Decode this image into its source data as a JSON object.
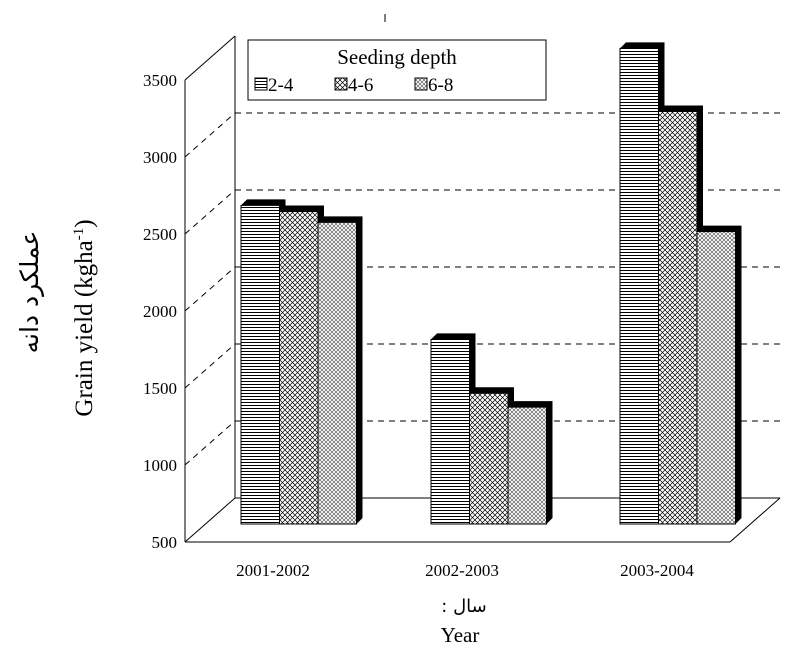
{
  "chart_data": {
    "type": "bar",
    "style": "3d-clustered",
    "categories": [
      "2001-2002",
      "2002-2003",
      "2003-2004"
    ],
    "series": [
      {
        "name": "2-4",
        "values": [
          2400,
          1530,
          3420
        ],
        "pattern": "horizontal-lines"
      },
      {
        "name": "4-6",
        "values": [
          2360,
          1180,
          3010
        ],
        "pattern": "crosshatch"
      },
      {
        "name": "6-8",
        "values": [
          2290,
          1090,
          2230
        ],
        "pattern": "crosshatch-fine"
      }
    ],
    "ylim": [
      500,
      3500
    ],
    "yticks": [
      500,
      1000,
      1500,
      2000,
      2500,
      3000,
      3500
    ],
    "ylabel": "Grain yield (kgha",
    "ylabel_sup": "-1",
    "ylabel_close": ")",
    "ylabel_fa": "عملکرد دانه",
    "xlabel": "Year",
    "xlabel_fa": ": سال",
    "legend_title": "Seeding depth",
    "legend_position": "top-left",
    "grid": "dashed-horizontal"
  }
}
